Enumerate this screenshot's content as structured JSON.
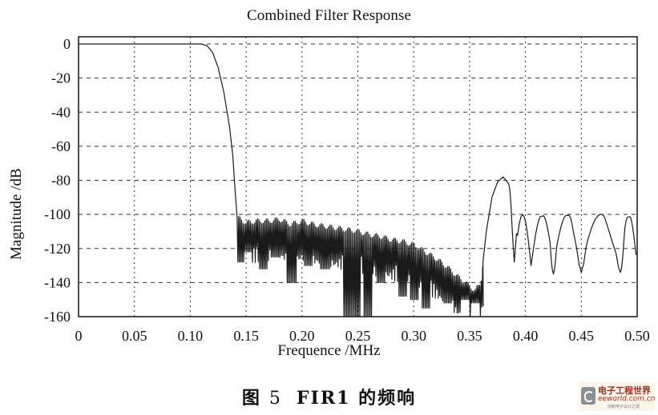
{
  "chart_data": {
    "type": "line",
    "title": "Combined Filter Response",
    "xlabel": "Frequence /MHz",
    "ylabel": "Magnitude /dB",
    "xlim": [
      0,
      0.5
    ],
    "ylim": [
      -160,
      0
    ],
    "x_ticks": [
      "0",
      "0.05",
      "0.10",
      "0.15",
      "0.20",
      "0.25",
      "0.30",
      "0.35",
      "0.40",
      "0.45",
      "0.50"
    ],
    "y_ticks": [
      "0",
      "-20",
      "-40",
      "-60",
      "-80",
      "-100",
      "-120",
      "-140",
      "-160"
    ],
    "grid": true,
    "grid_style": "dashed",
    "legend": null,
    "series": [
      {
        "name": "FIR1 magnitude response",
        "description": "Passband flat at 0 dB to ~0.11 MHz, steep roll-off to about -100 dB at ~0.14 MHz, rippled stopband with peaks declining from ~-103 dB to ~-150 dB near 0.36 MHz, sidelobe bump peaking near -78 dB at ~0.38 MHz, then lobes peaking near -100 dB with nulls at ~0.39, 0.405, 0.425, 0.45, 0.485 MHz",
        "envelope": {
          "x": [
            0,
            0.05,
            0.1,
            0.11,
            0.115,
            0.12,
            0.125,
            0.13,
            0.135,
            0.138,
            0.14,
            0.142,
            0.15,
            0.16,
            0.17,
            0.18,
            0.19,
            0.2,
            0.21,
            0.22,
            0.23,
            0.24,
            0.25,
            0.26,
            0.27,
            0.28,
            0.29,
            0.3,
            0.31,
            0.32,
            0.33,
            0.34,
            0.35,
            0.355,
            0.36,
            0.365,
            0.37,
            0.375,
            0.38,
            0.385,
            0.39,
            0.395,
            0.4,
            0.405,
            0.41,
            0.42,
            0.425,
            0.43,
            0.44,
            0.45,
            0.46,
            0.47,
            0.485,
            0.49,
            0.5
          ],
          "y": [
            0,
            0,
            0,
            0,
            -1,
            -5,
            -14,
            -28,
            -48,
            -65,
            -85,
            -102,
            -105,
            -104,
            -104,
            -103,
            -106,
            -104,
            -106,
            -107,
            -108,
            -109,
            -110,
            -112,
            -113,
            -115,
            -116,
            -118,
            -122,
            -126,
            -131,
            -137,
            -142,
            -145,
            -140,
            -110,
            -90,
            -81,
            -78,
            -82,
            -98,
            -100,
            -101,
            -100,
            -102,
            -100,
            -132,
            -102,
            -100,
            -134,
            -100,
            -100,
            -131,
            -102,
            -100
          ]
        },
        "stopband_ripple_minima": {
          "x": [
            0.145,
            0.15,
            0.165,
            0.175,
            0.19,
            0.205,
            0.22,
            0.24,
            0.248,
            0.258,
            0.27,
            0.29,
            0.3,
            0.31,
            0.33,
            0.345,
            0.355
          ],
          "y": [
            -128,
            -122,
            -132,
            -125,
            -140,
            -130,
            -132,
            -160,
            -160,
            -160,
            -140,
            -148,
            -150,
            -155,
            -152,
            -150,
            -152
          ]
        },
        "upper_nulls": {
          "x": [
            0.39,
            0.405,
            0.425,
            0.45,
            0.485
          ],
          "y": [
            -128,
            -128,
            -135,
            -132,
            -134
          ]
        }
      }
    ]
  },
  "figure": {
    "title": "Combined Filter Response",
    "xlabel": "Frequence /MHz",
    "ylabel": "Magnitude /dB",
    "caption_prefix": "图",
    "caption_number": "5",
    "caption_text": "FIR1 的频响"
  },
  "watermark": {
    "cn": "电子工程世界",
    "en": "eeworld.com.cn",
    "sub": "创新电子设计之源"
  }
}
